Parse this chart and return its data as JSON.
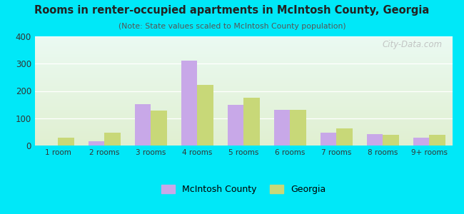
{
  "title": "Rooms in renter-occupied apartments in McIntosh County, Georgia",
  "subtitle": "(Note: State values scaled to McIntosh County population)",
  "categories": [
    "1 room",
    "2 rooms",
    "3 rooms",
    "4 rooms",
    "5 rooms",
    "6 rooms",
    "7 rooms",
    "8 rooms",
    "9+ rooms"
  ],
  "mcintosh_values": [
    0,
    15,
    152,
    310,
    148,
    132,
    48,
    42,
    28
  ],
  "georgia_values": [
    30,
    48,
    128,
    222,
    175,
    132,
    63,
    38,
    38
  ],
  "mcintosh_color": "#c8a8e8",
  "georgia_color": "#c8d878",
  "background_color": "#00e8f8",
  "ylim": [
    0,
    400
  ],
  "yticks": [
    0,
    100,
    200,
    300,
    400
  ],
  "bar_width": 0.35,
  "legend_mcintosh": "McIntosh County",
  "legend_georgia": "Georgia",
  "watermark": "City-Data.com"
}
